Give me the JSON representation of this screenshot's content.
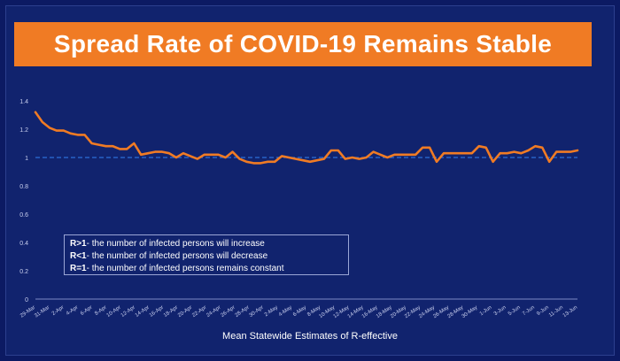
{
  "title": "Spread Rate of COVID-19 Remains Stable",
  "notes": [
    {
      "key": "R>1",
      "text": "- the number of infected persons will increase"
    },
    {
      "key": "R<1",
      "text": "- the number of infected persons will decrease"
    },
    {
      "key": "R=1",
      "text": "- the number of infected persons remains constant"
    }
  ],
  "colors": {
    "line": "#f07b24",
    "reference": "#2e6fd8",
    "background": "#11236e",
    "title_bar": "#f07b24"
  },
  "chart_data": {
    "type": "line",
    "title": "Spread Rate of COVID-19 Remains Stable",
    "xlabel": "Mean Statewide Estimates of R-effective",
    "ylabel": "",
    "ylim": [
      0,
      1.4
    ],
    "yticks": [
      0,
      0.2,
      0.4,
      0.6,
      0.8,
      1,
      1.2,
      1.4
    ],
    "ytick_labels": [
      "0",
      "0.2",
      "0.4",
      "0.6",
      "0.8",
      "1",
      "1.2",
      "1.4"
    ],
    "grid": false,
    "reference_line": 1,
    "xtick_labels": [
      "29-Mar",
      "31-Mar",
      "2-Apr",
      "4-Apr",
      "6-Apr",
      "8-Apr",
      "10-Apr",
      "12-Apr",
      "14-Apr",
      "16-Apr",
      "18-Apr",
      "20-Apr",
      "22-Apr",
      "24-Apr",
      "26-Apr",
      "28-Apr",
      "30-Apr",
      "2-May",
      "4-May",
      "6-May",
      "8-May",
      "10-May",
      "12-May",
      "14-May",
      "16-May",
      "18-May",
      "20-May",
      "22-May",
      "24-May",
      "26-May",
      "28-May",
      "30-May",
      "1-Jun",
      "3-Jun",
      "5-Jun",
      "7-Jun",
      "9-Jun",
      "11-Jun",
      "13-Jun"
    ],
    "series": [
      {
        "values": [
          1.32,
          1.25,
          1.21,
          1.19,
          1.19,
          1.17,
          1.16,
          1.16,
          1.1,
          1.09,
          1.08,
          1.08,
          1.06,
          1.06,
          1.1,
          1.02,
          1.03,
          1.04,
          1.04,
          1.03,
          1.0,
          1.03,
          1.01,
          0.99,
          1.02,
          1.02,
          1.02,
          1.0,
          1.04,
          0.99,
          0.97,
          0.96,
          0.96,
          0.97,
          0.97,
          1.01,
          1.0,
          0.99,
          0.98,
          0.97,
          0.98,
          0.99,
          1.05,
          1.05,
          0.99,
          1.0,
          0.99,
          1.0,
          1.04,
          1.02,
          1.0,
          1.02,
          1.02,
          1.02,
          1.02,
          1.07,
          1.07,
          0.97,
          1.03,
          1.03,
          1.03,
          1.03,
          1.03,
          1.08,
          1.07,
          0.97,
          1.03,
          1.03,
          1.04,
          1.03,
          1.05,
          1.08,
          1.07,
          0.97,
          1.04,
          1.04,
          1.04,
          1.05
        ]
      }
    ]
  }
}
